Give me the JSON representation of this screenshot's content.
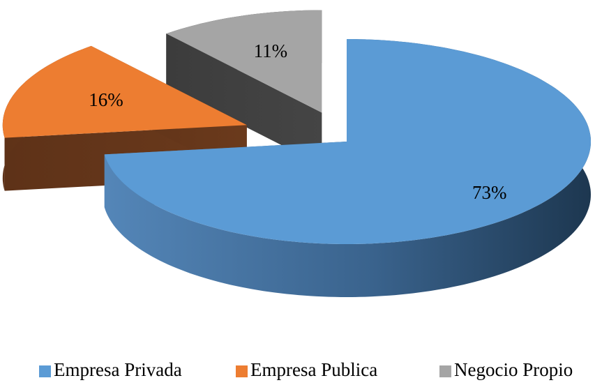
{
  "chart_data": {
    "type": "pie",
    "three_d": true,
    "exploded": true,
    "categories": [
      "Empresa Privada",
      "Empresa Publica",
      "Negocio Propio"
    ],
    "values": [
      73,
      16,
      11
    ],
    "value_labels": [
      "73%",
      "16%",
      "11%"
    ],
    "colors": [
      "#5b9bd5",
      "#ed7d31",
      "#a5a5a5"
    ],
    "legend": "bottom"
  }
}
